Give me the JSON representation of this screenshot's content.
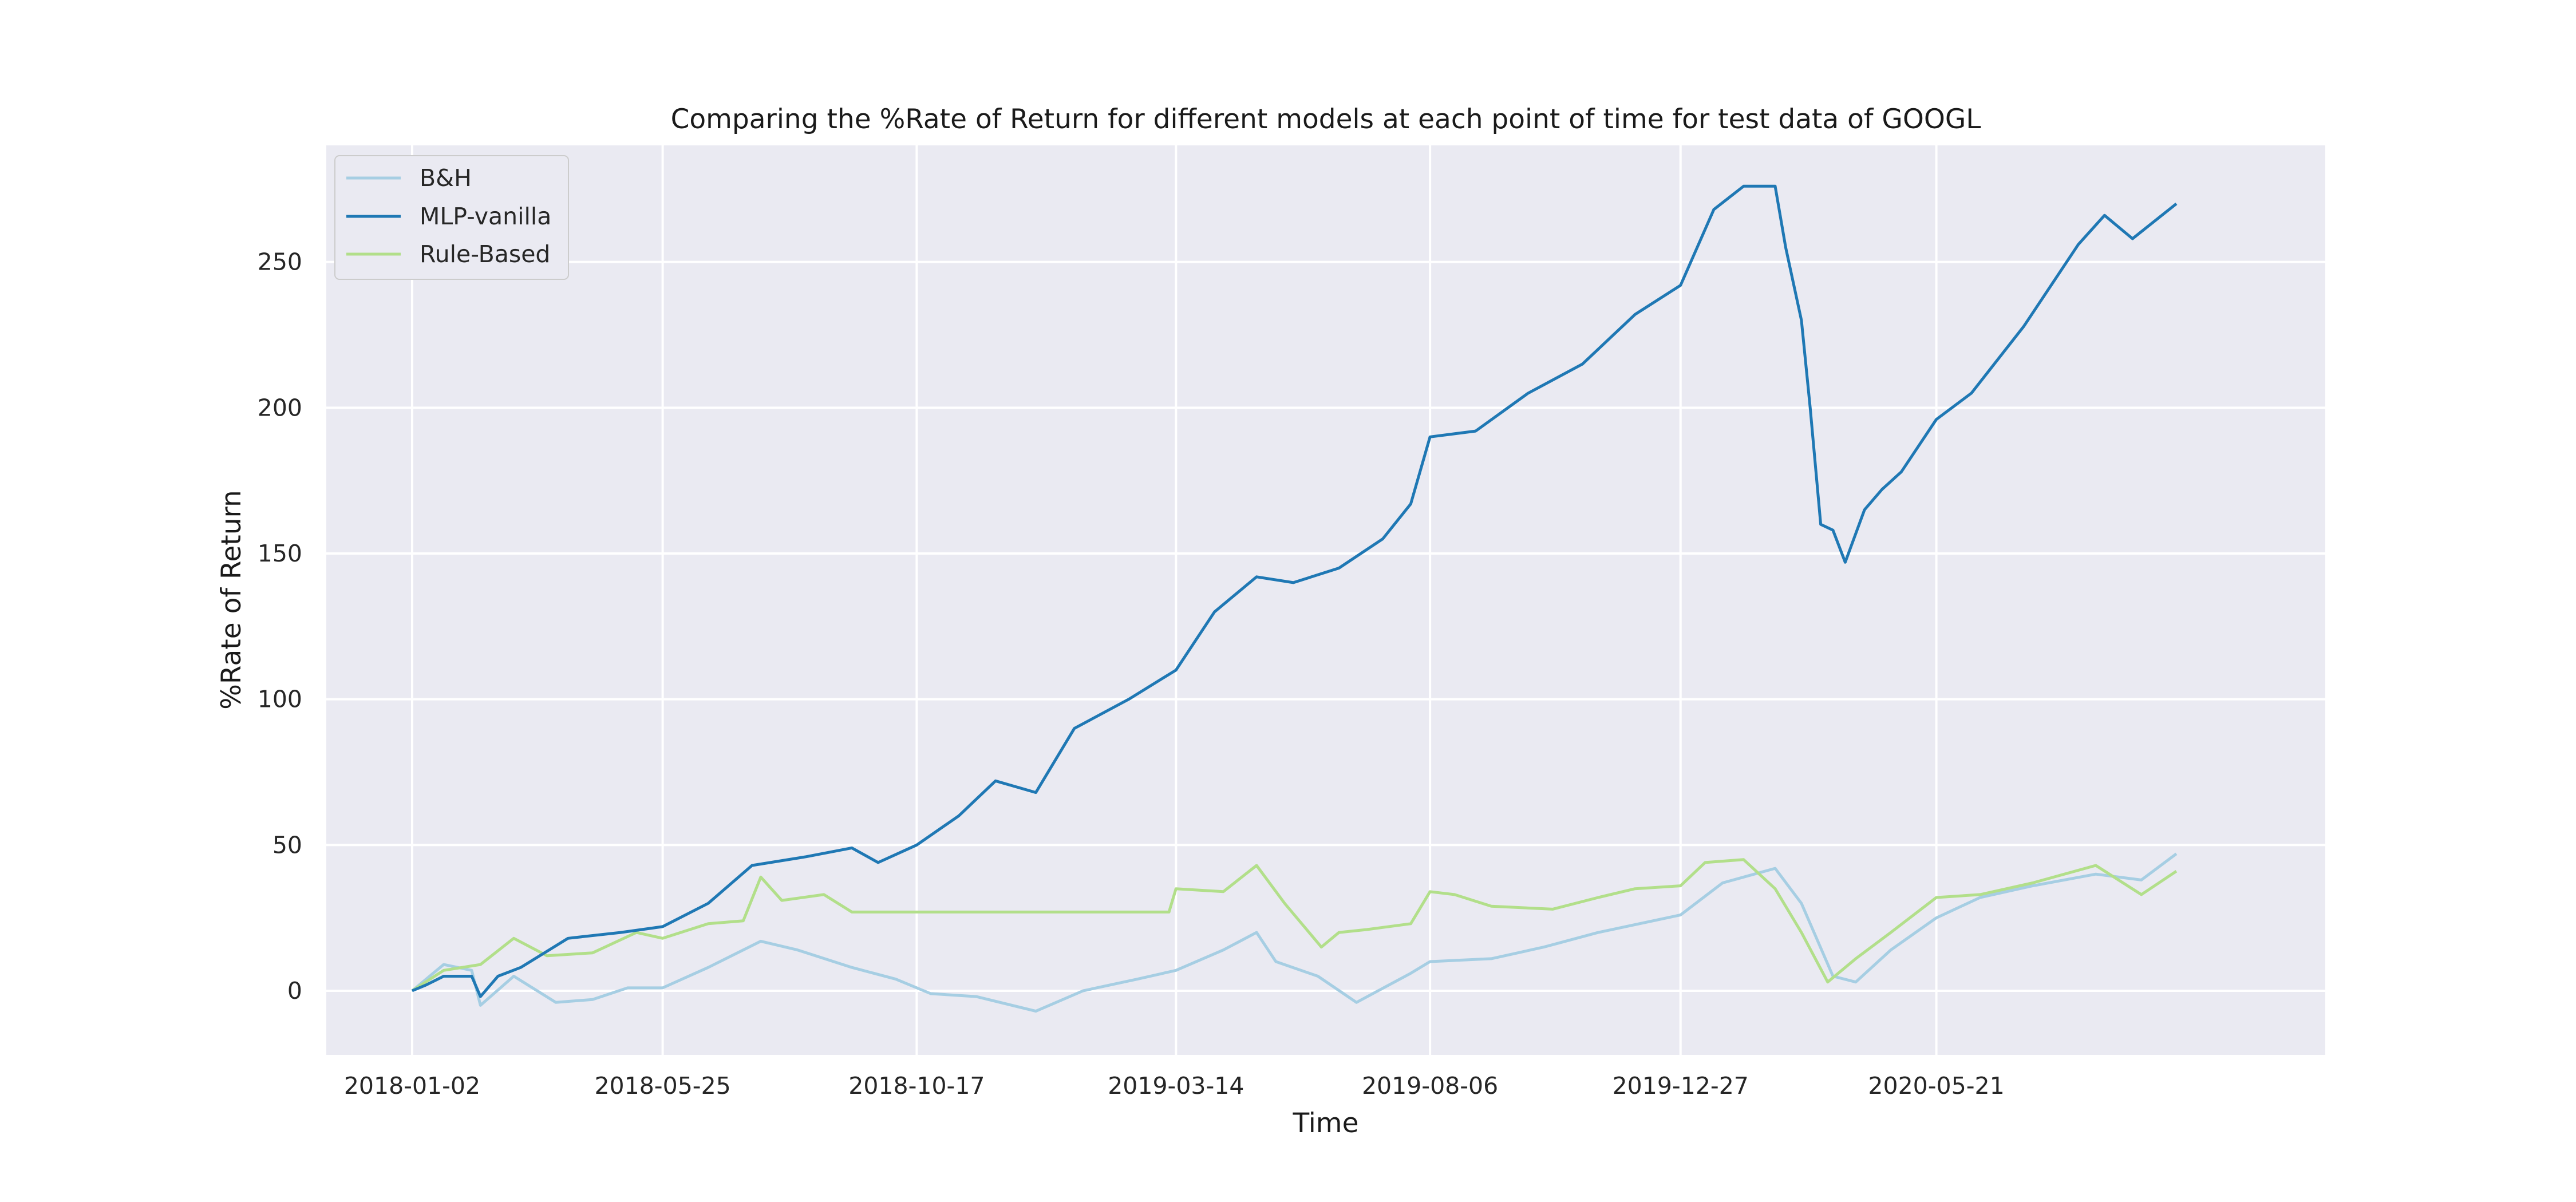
{
  "chart_data": {
    "type": "line",
    "title": "Comparing the %Rate of Return for different models at each point of time for test data of GOOGL",
    "xlabel": "Time",
    "ylabel": "%Rate of Return",
    "x_tick_labels": [
      "2018-01-02",
      "2018-05-25",
      "2018-10-17",
      "2019-03-14",
      "2019-08-06",
      "2019-12-27",
      "2020-05-21"
    ],
    "y_ticks": [
      0,
      50,
      100,
      150,
      200,
      250
    ],
    "xlim": [
      "2017-11-14",
      "2020-12-29"
    ],
    "ylim": [
      -22,
      290
    ],
    "grid": true,
    "legend_position": "top-left",
    "colors": {
      "background": "#eaeaf2",
      "grid": "#ffffff",
      "B&H": "#a6cee3",
      "MLP-vanilla": "#1f78b4",
      "Rule-Based": "#b2df8a"
    },
    "series": [
      {
        "name": "B&H",
        "x": [
          "2018-01-02",
          "2018-01-20",
          "2018-02-05",
          "2018-02-10",
          "2018-03-01",
          "2018-03-25",
          "2018-04-15",
          "2018-05-05",
          "2018-05-25",
          "2018-06-20",
          "2018-07-20",
          "2018-08-10",
          "2018-09-10",
          "2018-10-05",
          "2018-10-25",
          "2018-11-20",
          "2018-12-24",
          "2019-01-20",
          "2019-02-20",
          "2019-03-14",
          "2019-04-10",
          "2019-04-29",
          "2019-05-10",
          "2019-06-03",
          "2019-06-25",
          "2019-07-26",
          "2019-08-06",
          "2019-09-10",
          "2019-10-10",
          "2019-11-10",
          "2019-12-27",
          "2020-01-20",
          "2020-02-19",
          "2020-03-05",
          "2020-03-23",
          "2020-04-05",
          "2020-04-25",
          "2020-05-21",
          "2020-06-15",
          "2020-07-15",
          "2020-08-20",
          "2020-09-15",
          "2020-10-05"
        ],
        "y": [
          0,
          9,
          7,
          -5,
          5,
          -4,
          -3,
          1,
          1,
          8,
          17,
          14,
          8,
          4,
          -1,
          -2,
          -7,
          0,
          4,
          7,
          14,
          20,
          10,
          5,
          -4,
          6,
          10,
          11,
          15,
          20,
          26,
          37,
          42,
          30,
          5,
          3,
          14,
          25,
          32,
          36,
          40,
          38,
          47
        ]
      },
      {
        "name": "MLP-vanilla",
        "x": [
          "2018-01-02",
          "2018-01-10",
          "2018-01-20",
          "2018-02-05",
          "2018-02-10",
          "2018-02-20",
          "2018-03-05",
          "2018-04-01",
          "2018-05-01",
          "2018-05-25",
          "2018-06-20",
          "2018-07-15",
          "2018-08-15",
          "2018-09-10",
          "2018-09-25",
          "2018-10-17",
          "2018-11-10",
          "2018-12-01",
          "2018-12-24",
          "2019-01-15",
          "2019-02-15",
          "2019-03-14",
          "2019-04-05",
          "2019-04-29",
          "2019-05-20",
          "2019-06-15",
          "2019-07-10",
          "2019-07-26",
          "2019-08-06",
          "2019-09-01",
          "2019-10-01",
          "2019-11-01",
          "2019-12-01",
          "2019-12-27",
          "2020-01-15",
          "2020-02-01",
          "2020-02-19",
          "2020-02-25",
          "2020-03-05",
          "2020-03-10",
          "2020-03-16",
          "2020-03-23",
          "2020-03-30",
          "2020-04-10",
          "2020-04-20",
          "2020-05-01",
          "2020-05-21",
          "2020-06-10",
          "2020-07-10",
          "2020-08-10",
          "2020-08-25",
          "2020-09-10",
          "2020-10-05"
        ],
        "y": [
          0,
          2,
          5,
          5,
          -2,
          5,
          8,
          18,
          20,
          22,
          30,
          43,
          46,
          49,
          44,
          50,
          60,
          72,
          68,
          90,
          100,
          110,
          130,
          142,
          140,
          145,
          155,
          167,
          190,
          192,
          205,
          215,
          232,
          242,
          268,
          276,
          276,
          255,
          230,
          200,
          160,
          158,
          147,
          165,
          172,
          178,
          196,
          205,
          228,
          256,
          266,
          258,
          270
        ]
      },
      {
        "name": "Rule-Based",
        "x": [
          "2018-01-02",
          "2018-01-20",
          "2018-02-10",
          "2018-03-01",
          "2018-03-20",
          "2018-04-15",
          "2018-05-10",
          "2018-05-25",
          "2018-06-20",
          "2018-07-10",
          "2018-07-20",
          "2018-08-01",
          "2018-08-25",
          "2018-09-10",
          "2018-10-17",
          "2019-01-15",
          "2019-03-10",
          "2019-03-14",
          "2019-04-10",
          "2019-04-29",
          "2019-05-15",
          "2019-06-05",
          "2019-06-15",
          "2019-07-01",
          "2019-07-26",
          "2019-08-06",
          "2019-08-20",
          "2019-09-10",
          "2019-10-15",
          "2019-11-10",
          "2019-12-01",
          "2019-12-27",
          "2020-01-10",
          "2020-02-01",
          "2020-02-19",
          "2020-03-05",
          "2020-03-20",
          "2020-04-05",
          "2020-04-25",
          "2020-05-21",
          "2020-06-15",
          "2020-07-15",
          "2020-08-20",
          "2020-09-15",
          "2020-10-05"
        ],
        "y": [
          0,
          7,
          9,
          18,
          12,
          13,
          20,
          18,
          23,
          24,
          39,
          31,
          33,
          27,
          27,
          27,
          27,
          35,
          34,
          43,
          30,
          15,
          20,
          21,
          23,
          34,
          33,
          29,
          28,
          32,
          35,
          36,
          44,
          45,
          35,
          20,
          3,
          11,
          20,
          32,
          33,
          37,
          43,
          33,
          41
        ]
      }
    ]
  }
}
